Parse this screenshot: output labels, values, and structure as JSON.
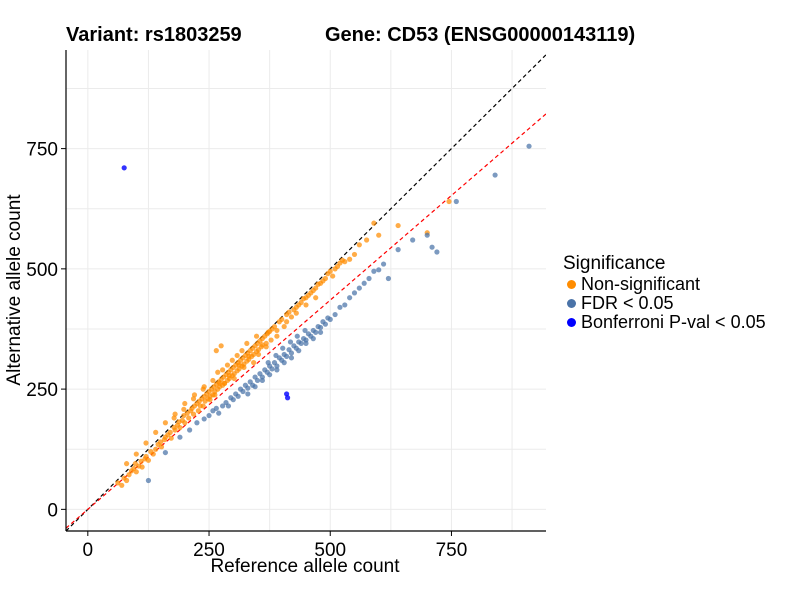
{
  "header": {
    "variant": "Variant: rs1803259",
    "gene": "Gene: CD53 (ENSG00000143119)"
  },
  "legend": {
    "title": "Significance",
    "items": [
      {
        "label": "Non-significant",
        "color": "#FF8C00"
      },
      {
        "label": "FDR < 0.05",
        "color": "#4A73A8"
      },
      {
        "label": "Bonferroni P-val < 0.05",
        "color": "#0000FF"
      }
    ]
  },
  "chart_data": {
    "type": "scatter",
    "xlabel": "Reference allele count",
    "ylabel": "Alternative allele count",
    "xlim": [
      -45,
      945
    ],
    "ylim": [
      -45,
      955
    ],
    "xticks": [
      0,
      250,
      500,
      750
    ],
    "yticks": [
      0,
      250,
      500,
      750
    ],
    "grid": true,
    "legend_position": "right",
    "reference_lines": [
      {
        "name": "identity",
        "slope": 1.0,
        "intercept": 0,
        "color": "#000000",
        "style": "dashed"
      },
      {
        "name": "fit",
        "slope": 0.87,
        "intercept": 0,
        "color": "#FF0000",
        "style": "dashed"
      }
    ],
    "series": [
      {
        "name": "Non-significant",
        "color": "#FF8C00",
        "points": [
          [
            62,
            55
          ],
          [
            70,
            50
          ],
          [
            75,
            65
          ],
          [
            80,
            60
          ],
          [
            85,
            72
          ],
          [
            90,
            80
          ],
          [
            95,
            85
          ],
          [
            98,
            95
          ],
          [
            100,
            78
          ],
          [
            105,
            90
          ],
          [
            110,
            100
          ],
          [
            112,
            88
          ],
          [
            118,
            105
          ],
          [
            120,
            110
          ],
          [
            125,
            102
          ],
          [
            130,
            120
          ],
          [
            135,
            115
          ],
          [
            140,
            125
          ],
          [
            145,
            135
          ],
          [
            150,
            140
          ],
          [
            152,
            130
          ],
          [
            158,
            145
          ],
          [
            160,
            150
          ],
          [
            165,
            155
          ],
          [
            170,
            160
          ],
          [
            172,
            148
          ],
          [
            178,
            170
          ],
          [
            180,
            165
          ],
          [
            185,
            175
          ],
          [
            188,
            182
          ],
          [
            190,
            170
          ],
          [
            195,
            185
          ],
          [
            198,
            195
          ],
          [
            200,
            180
          ],
          [
            205,
            200
          ],
          [
            208,
            190
          ],
          [
            212,
            205
          ],
          [
            215,
            210
          ],
          [
            218,
            198
          ],
          [
            220,
            215
          ],
          [
            225,
            220
          ],
          [
            228,
            205
          ],
          [
            230,
            225
          ],
          [
            235,
            230
          ],
          [
            238,
            215
          ],
          [
            240,
            235
          ],
          [
            242,
            225
          ],
          [
            245,
            240
          ],
          [
            248,
            230
          ],
          [
            250,
            245
          ],
          [
            252,
            235
          ],
          [
            255,
            250
          ],
          [
            258,
            238
          ],
          [
            260,
            255
          ],
          [
            262,
            245
          ],
          [
            265,
            260
          ],
          [
            268,
            250
          ],
          [
            270,
            265
          ],
          [
            272,
            255
          ],
          [
            275,
            270
          ],
          [
            278,
            258
          ],
          [
            280,
            275
          ],
          [
            282,
            262
          ],
          [
            285,
            280
          ],
          [
            288,
            268
          ],
          [
            290,
            285
          ],
          [
            292,
            272
          ],
          [
            295,
            290
          ],
          [
            298,
            278
          ],
          [
            300,
            295
          ],
          [
            302,
            282
          ],
          [
            305,
            300
          ],
          [
            308,
            288
          ],
          [
            310,
            305
          ],
          [
            312,
            292
          ],
          [
            315,
            310
          ],
          [
            318,
            298
          ],
          [
            320,
            315
          ],
          [
            322,
            302
          ],
          [
            325,
            320
          ],
          [
            328,
            308
          ],
          [
            330,
            325
          ],
          [
            332,
            312
          ],
          [
            335,
            330
          ],
          [
            338,
            318
          ],
          [
            340,
            335
          ],
          [
            342,
            322
          ],
          [
            345,
            340
          ],
          [
            348,
            328
          ],
          [
            350,
            345
          ],
          [
            352,
            332
          ],
          [
            355,
            350
          ],
          [
            358,
            338
          ],
          [
            360,
            355
          ],
          [
            365,
            360
          ],
          [
            368,
            345
          ],
          [
            370,
            365
          ],
          [
            375,
            370
          ],
          [
            378,
            352
          ],
          [
            380,
            375
          ],
          [
            385,
            380
          ],
          [
            390,
            372
          ],
          [
            395,
            390
          ],
          [
            400,
            395
          ],
          [
            405,
            380
          ],
          [
            410,
            405
          ],
          [
            415,
            410
          ],
          [
            420,
            400
          ],
          [
            425,
            415
          ],
          [
            430,
            420
          ],
          [
            435,
            425
          ],
          [
            440,
            430
          ],
          [
            445,
            438
          ],
          [
            450,
            440
          ],
          [
            455,
            445
          ],
          [
            460,
            450
          ],
          [
            465,
            455
          ],
          [
            470,
            460
          ],
          [
            475,
            468
          ],
          [
            480,
            470
          ],
          [
            485,
            475
          ],
          [
            490,
            480
          ],
          [
            495,
            490
          ],
          [
            500,
            495
          ],
          [
            505,
            485
          ],
          [
            510,
            500
          ],
          [
            515,
            505
          ],
          [
            520,
            512
          ],
          [
            525,
            518
          ],
          [
            530,
            515
          ],
          [
            540,
            520
          ],
          [
            550,
            530
          ],
          [
            560,
            550
          ],
          [
            575,
            560
          ],
          [
            590,
            595
          ],
          [
            600,
            570
          ],
          [
            640,
            590
          ],
          [
            700,
            575
          ],
          [
            745,
            640
          ],
          [
            232,
            215
          ],
          [
            262,
            238
          ],
          [
            282,
            262
          ],
          [
            302,
            272
          ],
          [
            322,
            295
          ],
          [
            342,
            305
          ],
          [
            252,
            228
          ],
          [
            272,
            262
          ],
          [
            292,
            278
          ],
          [
            312,
            300
          ],
          [
            332,
            318
          ],
          [
            352,
            322
          ],
          [
            368,
            338
          ],
          [
            318,
            330
          ],
          [
            298,
            310
          ],
          [
            278,
            290
          ],
          [
            258,
            268
          ],
          [
            238,
            250
          ],
          [
            218,
            230
          ],
          [
            198,
            208
          ],
          [
            178,
            190
          ],
          [
            360,
            342
          ],
          [
            372,
            368
          ],
          [
            390,
            360
          ],
          [
            410,
            390
          ],
          [
            430,
            408
          ],
          [
            450,
            425
          ],
          [
            470,
            440
          ],
          [
            268,
            285
          ],
          [
            288,
            300
          ],
          [
            308,
            320
          ],
          [
            328,
            345
          ],
          [
            348,
            360
          ],
          [
            240,
            255
          ],
          [
            220,
            238
          ],
          [
            200,
            220
          ],
          [
            180,
            198
          ],
          [
            160,
            180
          ],
          [
            140,
            160
          ],
          [
            120,
            138
          ],
          [
            100,
            115
          ],
          [
            80,
            95
          ],
          [
            265,
            330
          ],
          [
            275,
            340
          ]
        ]
      },
      {
        "name": "FDR < 0.05",
        "color": "#4A73A8",
        "points": [
          [
            125,
            60
          ],
          [
            160,
            118
          ],
          [
            190,
            150
          ],
          [
            210,
            165
          ],
          [
            225,
            180
          ],
          [
            240,
            188
          ],
          [
            250,
            195
          ],
          [
            258,
            205
          ],
          [
            265,
            210
          ],
          [
            270,
            200
          ],
          [
            278,
            215
          ],
          [
            285,
            222
          ],
          [
            290,
            215
          ],
          [
            295,
            232
          ],
          [
            300,
            228
          ],
          [
            305,
            240
          ],
          [
            310,
            235
          ],
          [
            315,
            250
          ],
          [
            320,
            245
          ],
          [
            325,
            258
          ],
          [
            330,
            252
          ],
          [
            335,
            265
          ],
          [
            340,
            258
          ],
          [
            345,
            275
          ],
          [
            350,
            268
          ],
          [
            355,
            282
          ],
          [
            360,
            275
          ],
          [
            365,
            290
          ],
          [
            370,
            285
          ],
          [
            375,
            298
          ],
          [
            380,
            292
          ],
          [
            385,
            305
          ],
          [
            390,
            298
          ],
          [
            395,
            315
          ],
          [
            400,
            310
          ],
          [
            405,
            322
          ],
          [
            410,
            318
          ],
          [
            415,
            332
          ],
          [
            420,
            325
          ],
          [
            425,
            340
          ],
          [
            430,
            335
          ],
          [
            435,
            348
          ],
          [
            440,
            345
          ],
          [
            445,
            355
          ],
          [
            450,
            352
          ],
          [
            455,
            365
          ],
          [
            460,
            360
          ],
          [
            465,
            372
          ],
          [
            470,
            368
          ],
          [
            475,
            380
          ],
          [
            480,
            378
          ],
          [
            485,
            390
          ],
          [
            490,
            385
          ],
          [
            495,
            398
          ],
          [
            500,
            395
          ],
          [
            510,
            405
          ],
          [
            520,
            420
          ],
          [
            530,
            425
          ],
          [
            540,
            440
          ],
          [
            550,
            450
          ],
          [
            560,
            460
          ],
          [
            570,
            470
          ],
          [
            580,
            480
          ],
          [
            590,
            495
          ],
          [
            600,
            498
          ],
          [
            610,
            510
          ],
          [
            620,
            480
          ],
          [
            640,
            540
          ],
          [
            670,
            560
          ],
          [
            700,
            570
          ],
          [
            710,
            545
          ],
          [
            720,
            535
          ],
          [
            760,
            640
          ],
          [
            840,
            695
          ],
          [
            910,
            755
          ],
          [
            330,
            240
          ],
          [
            345,
            255
          ],
          [
            360,
            268
          ],
          [
            375,
            280
          ],
          [
            390,
            290
          ],
          [
            405,
            305
          ],
          [
            420,
            315
          ],
          [
            435,
            330
          ],
          [
            450,
            345
          ],
          [
            465,
            355
          ],
          [
            480,
            368
          ],
          [
            372,
            305
          ],
          [
            388,
            320
          ],
          [
            402,
            335
          ],
          [
            418,
            348
          ],
          [
            432,
            360
          ],
          [
            448,
            372
          ]
        ]
      },
      {
        "name": "Bonferroni P-val < 0.05",
        "color": "#0000FF",
        "points": [
          [
            75,
            710
          ],
          [
            410,
            240
          ],
          [
            412,
            232
          ]
        ]
      }
    ]
  }
}
